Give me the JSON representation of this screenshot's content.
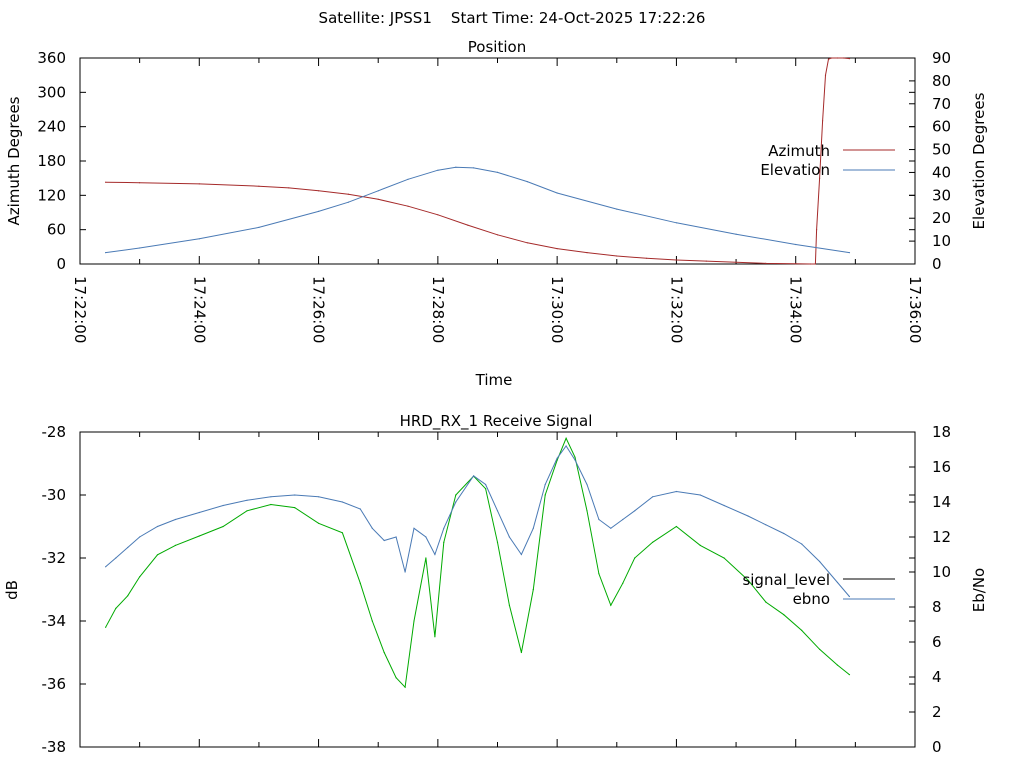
{
  "header": {
    "title": "Satellite: JPSS1    Start Time: 24-Oct-2025 17:22:26"
  },
  "colors": {
    "azimuth": "#a52a2a",
    "elevation": "#4a7ab5",
    "signal_level": "#000000",
    "ebno": "#4a7ab5",
    "signal_trace": "#00aa00"
  },
  "chart_data": [
    {
      "type": "line",
      "title": "Position",
      "xlabel": "Time",
      "ylabel": "Azimuth Degrees",
      "y2label": "Elevation Degrees",
      "xlim_minutes": [
        0,
        14
      ],
      "x_origin": "17:22:00",
      "x_ticks": [
        "17:22:00",
        "17:24:00",
        "17:26:00",
        "17:28:00",
        "17:30:00",
        "17:32:00",
        "17:34:00",
        "17:36:00"
      ],
      "ylim": [
        0,
        360
      ],
      "y_ticks": [
        "0",
        "60",
        "120",
        "180",
        "240",
        "300",
        "360"
      ],
      "y2lim": [
        0,
        90
      ],
      "y2_ticks": [
        "0",
        "10",
        "20",
        "30",
        "40",
        "50",
        "60",
        "70",
        "80",
        "90"
      ],
      "legend": [
        "Azimuth",
        "Elevation"
      ],
      "legend_position": "right",
      "series": [
        {
          "name": "Azimuth",
          "axis": "y",
          "x": [
            0.43,
            1.0,
            2.0,
            3.0,
            3.5,
            4.0,
            4.5,
            5.0,
            5.5,
            6.0,
            6.5,
            7.0,
            7.5,
            8.0,
            8.5,
            9.0,
            9.5,
            10.0,
            10.5,
            11.0,
            11.5,
            12.0,
            12.25,
            12.33,
            12.35,
            12.4,
            12.45,
            12.5,
            12.55,
            12.6,
            12.7,
            12.8,
            12.9
          ],
          "values": [
            143,
            142,
            140,
            136,
            133,
            128,
            122,
            113,
            101,
            86,
            68,
            51,
            37,
            27,
            20,
            14,
            10,
            7,
            5,
            3,
            1,
            0.5,
            0,
            0,
            60,
            150,
            250,
            330,
            358,
            360,
            360,
            360,
            359
          ]
        },
        {
          "name": "Elevation",
          "axis": "y2",
          "x": [
            0.43,
            1.0,
            2.0,
            3.0,
            4.0,
            4.5,
            5.0,
            5.5,
            6.0,
            6.3,
            6.6,
            7.0,
            7.5,
            8.0,
            9.0,
            10.0,
            11.0,
            12.0,
            12.9
          ],
          "values": [
            5,
            7,
            11,
            16,
            23,
            27,
            32,
            37,
            41,
            42.3,
            42,
            40,
            36,
            31,
            24,
            18,
            13,
            8.5,
            5
          ]
        }
      ]
    },
    {
      "type": "line",
      "title": "HRD_RX_1 Receive Signal",
      "xlabel": "",
      "ylabel": "dB",
      "y2label": "Eb/No",
      "xlim_minutes": [
        0,
        14
      ],
      "ylim": [
        -38,
        -28
      ],
      "y_ticks": [
        "-28",
        "-30",
        "-32",
        "-34",
        "-36",
        "-38"
      ],
      "y2lim": [
        0,
        18
      ],
      "y2_ticks": [
        "0",
        "2",
        "4",
        "6",
        "8",
        "10",
        "12",
        "14",
        "16",
        "18"
      ],
      "legend": [
        "signal_level",
        "ebno"
      ],
      "legend_position": "right",
      "series": [
        {
          "name": "signal_level",
          "axis": "y",
          "x": [
            0.43,
            0.6,
            0.8,
            1.0,
            1.3,
            1.6,
            2.0,
            2.4,
            2.8,
            3.2,
            3.6,
            4.0,
            4.4,
            4.7,
            4.9,
            5.1,
            5.3,
            5.45,
            5.6,
            5.8,
            5.95,
            6.1,
            6.3,
            6.6,
            6.8,
            7.0,
            7.2,
            7.4,
            7.6,
            7.8,
            8.0,
            8.15,
            8.3,
            8.5,
            8.7,
            8.9,
            9.1,
            9.3,
            9.6,
            10.0,
            10.4,
            10.8,
            11.2,
            11.5,
            11.8,
            12.1,
            12.4,
            12.7,
            12.9
          ],
          "values": [
            -34.2,
            -33.6,
            -33.2,
            -32.6,
            -31.9,
            -31.6,
            -31.3,
            -31.0,
            -30.5,
            -30.3,
            -30.4,
            -30.9,
            -31.2,
            -32.8,
            -34.0,
            -35.0,
            -35.8,
            -36.1,
            -34.0,
            -32.0,
            -34.5,
            -31.5,
            -30.0,
            -29.4,
            -29.8,
            -31.5,
            -33.5,
            -35.0,
            -33.0,
            -30.0,
            -28.9,
            -28.2,
            -28.8,
            -30.5,
            -32.5,
            -33.5,
            -32.8,
            -32.0,
            -31.5,
            -31.0,
            -31.6,
            -32.0,
            -32.7,
            -33.4,
            -33.8,
            -34.3,
            -34.9,
            -35.4,
            -35.7
          ]
        },
        {
          "name": "ebno",
          "axis": "y2",
          "x": [
            0.43,
            0.6,
            0.8,
            1.0,
            1.3,
            1.6,
            2.0,
            2.4,
            2.8,
            3.2,
            3.6,
            4.0,
            4.4,
            4.7,
            4.9,
            5.1,
            5.3,
            5.45,
            5.6,
            5.8,
            5.95,
            6.1,
            6.3,
            6.6,
            6.8,
            7.0,
            7.2,
            7.4,
            7.6,
            7.8,
            8.0,
            8.15,
            8.3,
            8.5,
            8.7,
            8.9,
            9.1,
            9.3,
            9.6,
            10.0,
            10.4,
            10.8,
            11.2,
            11.5,
            11.8,
            12.1,
            12.4,
            12.7,
            12.9
          ],
          "values": [
            10.3,
            10.8,
            11.4,
            12.0,
            12.6,
            13.0,
            13.4,
            13.8,
            14.1,
            14.3,
            14.4,
            14.3,
            14.0,
            13.6,
            12.5,
            11.8,
            12.0,
            10.0,
            12.5,
            12.0,
            11.0,
            12.5,
            14.0,
            15.5,
            15.0,
            13.5,
            12.0,
            11.0,
            12.5,
            15.0,
            16.5,
            17.2,
            16.4,
            15.0,
            13.0,
            12.5,
            13.0,
            13.5,
            14.3,
            14.6,
            14.4,
            13.8,
            13.2,
            12.7,
            12.2,
            11.6,
            10.6,
            9.4,
            8.6
          ]
        }
      ]
    }
  ]
}
